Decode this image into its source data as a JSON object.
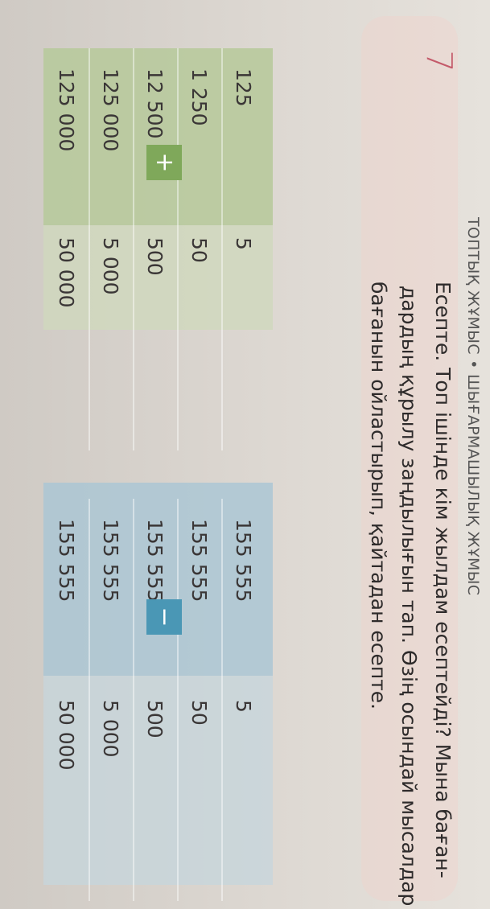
{
  "header": "ТОПТЫҚ ЖҰМЫС • ШЫҒАРМАШЫЛЫҚ ЖҰМЫС",
  "task_number": "7",
  "task_lines": [
    "Есепте. Топ ішінде кім жылдам есептейді? Мына баған-",
    "дардың құрылу заңдылығын тап. Өзің осындай мысалдар",
    "бағанын ойластырып, қайтадан есепте."
  ],
  "left_table": {
    "operator": "+",
    "color": "#7fa85a",
    "rows": [
      [
        "125",
        "5"
      ],
      [
        "1 250",
        "50"
      ],
      [
        "12 500",
        "500"
      ],
      [
        "125 000",
        "5 000"
      ],
      [
        "125 000",
        "50 000"
      ]
    ]
  },
  "right_table": {
    "operator": "−",
    "color": "#4a97b5",
    "rows": [
      [
        "155 555",
        "5"
      ],
      [
        "155 555",
        "50"
      ],
      [
        "155 555",
        "500"
      ],
      [
        "155 555",
        "5 000"
      ],
      [
        "155 555",
        "50 000"
      ]
    ]
  }
}
